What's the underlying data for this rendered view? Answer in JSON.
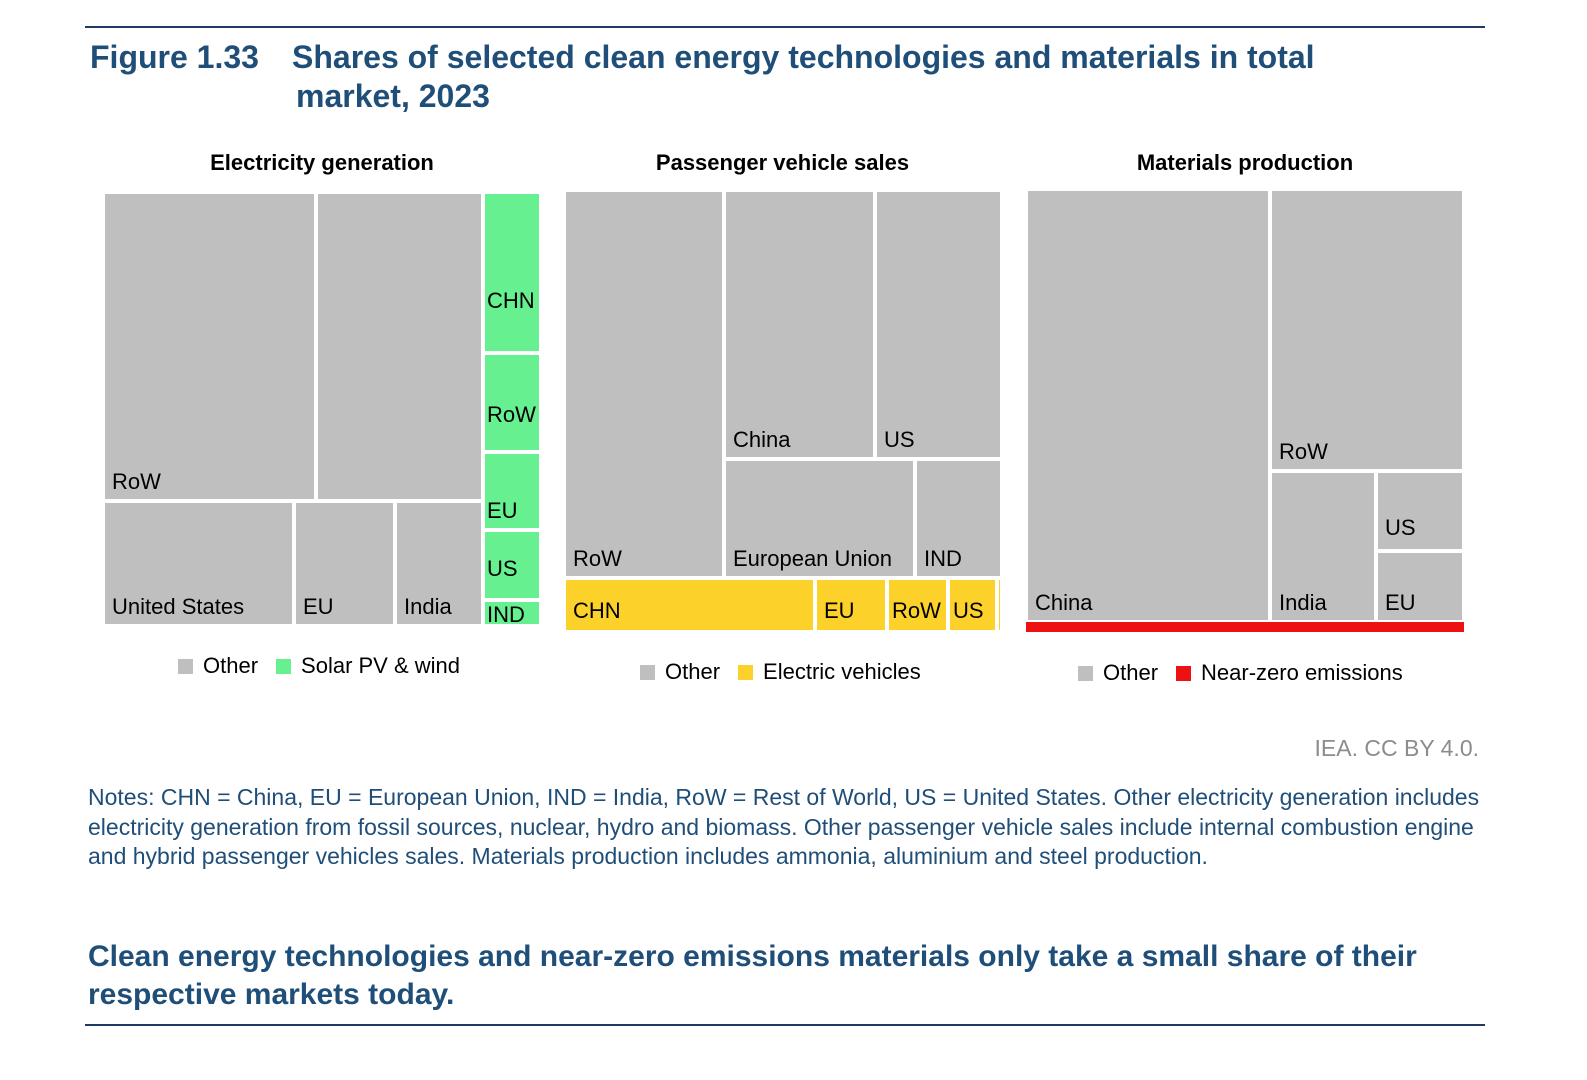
{
  "figure": {
    "number": "Figure 1.33",
    "title_line1": "Shares of selected clean energy technologies and materials in total",
    "title_line2": "market, 2023"
  },
  "chart_data": [
    {
      "type": "treemap",
      "title": "Electricity generation",
      "legend": [
        {
          "label": "Other",
          "color": "#bfbfbf"
        },
        {
          "label": "Solar PV & wind",
          "color": "#66f090"
        }
      ],
      "groups": [
        {
          "name": "Other",
          "color": "#bfbfbf",
          "children": [
            {
              "label": "RoW",
              "value": 27.4
            },
            {
              "label": "",
              "value": 21.4
            },
            {
              "label": "United States",
              "value": 9.9
            },
            {
              "label": "EU",
              "value": 5.3
            },
            {
              "label": "India",
              "value": 4.6
            }
          ]
        },
        {
          "name": "Solar PV & wind",
          "color": "#66f090",
          "children": [
            {
              "label": "CHN",
              "value": 3.8
            },
            {
              "label": "RoW",
              "value": 2.5
            },
            {
              "label": "EU",
              "value": 1.9
            },
            {
              "label": "US",
              "value": 1.7
            },
            {
              "label": "IND",
              "value": 0.7
            }
          ]
        }
      ]
    },
    {
      "type": "treemap",
      "title": "Passenger vehicle sales",
      "legend": [
        {
          "label": "Other",
          "color": "#bfbfbf"
        },
        {
          "label": "Electric vehicles",
          "color": "#fcd22a"
        }
      ],
      "groups": [
        {
          "name": "Other",
          "color": "#bfbfbf",
          "children": [
            {
              "label": "RoW",
              "value": 27.6
            },
            {
              "label": "China",
              "value": 18.2
            },
            {
              "label": "US",
              "value": 13.6
            },
            {
              "label": "European Union",
              "value": 12.3
            },
            {
              "label": "IND",
              "value": 5.6
            }
          ]
        },
        {
          "name": "Electric vehicles",
          "color": "#fcd22a",
          "children": [
            {
              "label": "CHN",
              "value": 8.4
            },
            {
              "label": "EU",
              "value": 2.4
            },
            {
              "label": "RoW",
              "value": 2.0
            },
            {
              "label": "US",
              "value": 1.8
            },
            {
              "label": "",
              "value": 0.2
            }
          ]
        }
      ]
    },
    {
      "type": "treemap",
      "title": "Materials production",
      "legend": [
        {
          "label": "Other",
          "color": "#bfbfbf"
        },
        {
          "label": "Near-zero emissions",
          "color": "#ee1111"
        }
      ],
      "groups": [
        {
          "name": "Other",
          "color": "#bfbfbf",
          "children": [
            {
              "label": "China",
              "value": 53.5
            },
            {
              "label": "RoW",
              "value": 27.0
            },
            {
              "label": "India",
              "value": 9.2
            },
            {
              "label": "US",
              "value": 4.8
            },
            {
              "label": "EU",
              "value": 4.4
            }
          ]
        },
        {
          "name": "Near-zero emissions",
          "color": "#ee1111",
          "children": [
            {
              "label": "",
              "value": 1.1
            }
          ]
        }
      ]
    }
  ],
  "source": "IEA. CC BY 4.0.",
  "notes": "Notes: CHN = China, EU = European Union, IND = India, RoW = Rest of World, US = United States. Other electricity generation includes electricity generation from fossil sources, nuclear, hydro and biomass. Other passenger vehicle sales include internal combustion engine and hybrid passenger vehicles sales. Materials production includes ammonia, aluminium and steel production.",
  "takeaway": "Clean energy technologies and near-zero emissions materials only take a small share of their respective markets today."
}
